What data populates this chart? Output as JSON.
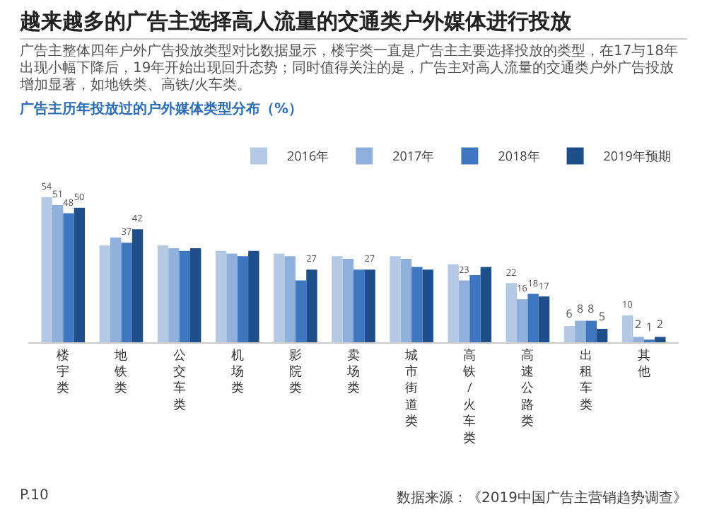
{
  "chart_data": {
    "type": "bar",
    "title": "越来越多的广告主选择高人流量的交通类户外媒体进行投放",
    "subtitle": "广告主整体四年户外广告投放类型对比数据显示，楼宇类一直是广告主主要选择投放的类型，在17与18年出现小幅下降后，19年开始出现回升态势；同时值得关注的是，广告主对高人流量的交通类户外广告投放增加显著，如地铁类、高铁/火车类。",
    "categories": [
      "楼宇类",
      "地铁类",
      "公交车类",
      "机场类",
      "影院类",
      "卖场类",
      "城市街道类",
      "高铁/火车类",
      "高速公路类",
      "出租车类",
      "其他"
    ],
    "series": [
      {
        "name": "2016年",
        "color": "#b4c9e4",
        "values": [
          54,
          36,
          36,
          34,
          33,
          32,
          32,
          29,
          22,
          6,
          10
        ],
        "value_labels": [
          "54",
          null,
          null,
          null,
          null,
          null,
          null,
          null,
          "22",
          "6",
          "10"
        ]
      },
      {
        "name": "2017年",
        "color": "#8fb0da",
        "values": [
          51,
          39,
          35,
          33,
          32,
          31,
          31,
          23,
          16,
          8,
          2
        ],
        "value_labels": [
          "51",
          null,
          null,
          null,
          null,
          null,
          null,
          "23",
          "16",
          "8",
          "2"
        ]
      },
      {
        "name": "2018年",
        "color": "#3f76c0",
        "values": [
          48,
          37,
          34,
          32,
          23,
          27,
          28,
          25,
          18,
          8,
          1
        ],
        "value_labels": [
          "48",
          "37",
          null,
          null,
          null,
          null,
          null,
          null,
          "18",
          "8",
          "1"
        ]
      },
      {
        "name": "2019年预期",
        "color": "#1f4f8a",
        "values": [
          50,
          42,
          35,
          34,
          27,
          27,
          27,
          28,
          17,
          5,
          2
        ],
        "value_labels": [
          "50",
          "42",
          null,
          null,
          "27",
          "27",
          null,
          null,
          "17",
          "5",
          "2"
        ]
      }
    ],
    "legend": "top right",
    "annotations": [
      "广告主历年投放过的户外媒体类型分布（%）",
      "P.10",
      "数据来源：《2019中国广告主营销趋势调查》"
    ]
  }
}
